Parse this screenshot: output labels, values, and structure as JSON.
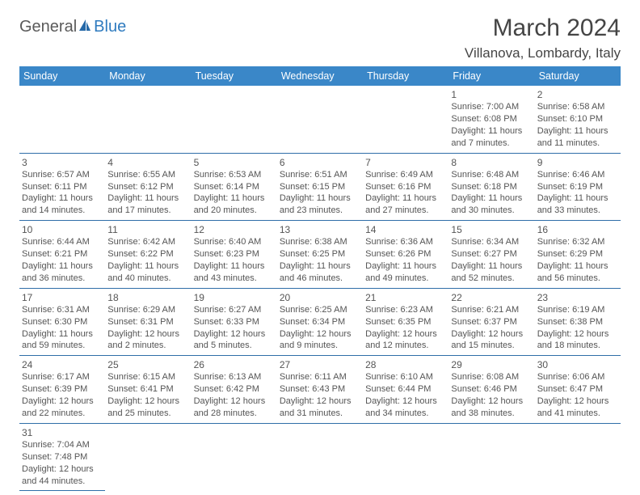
{
  "logo": {
    "text1": "General",
    "text2": "Blue"
  },
  "title": "March 2024",
  "location": "Villanova, Lombardy, Italy",
  "colors": {
    "header_bg": "#3a87c8",
    "header_text": "#ffffff",
    "border": "#2f6ea8",
    "text": "#555555",
    "title": "#454545"
  },
  "weekdays": [
    "Sunday",
    "Monday",
    "Tuesday",
    "Wednesday",
    "Thursday",
    "Friday",
    "Saturday"
  ],
  "weeks": [
    [
      null,
      null,
      null,
      null,
      null,
      {
        "n": "1",
        "r": "Sunrise: 7:00 AM",
        "s": "Sunset: 6:08 PM",
        "d1": "Daylight: 11 hours",
        "d2": "and 7 minutes."
      },
      {
        "n": "2",
        "r": "Sunrise: 6:58 AM",
        "s": "Sunset: 6:10 PM",
        "d1": "Daylight: 11 hours",
        "d2": "and 11 minutes."
      }
    ],
    [
      {
        "n": "3",
        "r": "Sunrise: 6:57 AM",
        "s": "Sunset: 6:11 PM",
        "d1": "Daylight: 11 hours",
        "d2": "and 14 minutes."
      },
      {
        "n": "4",
        "r": "Sunrise: 6:55 AM",
        "s": "Sunset: 6:12 PM",
        "d1": "Daylight: 11 hours",
        "d2": "and 17 minutes."
      },
      {
        "n": "5",
        "r": "Sunrise: 6:53 AM",
        "s": "Sunset: 6:14 PM",
        "d1": "Daylight: 11 hours",
        "d2": "and 20 minutes."
      },
      {
        "n": "6",
        "r": "Sunrise: 6:51 AM",
        "s": "Sunset: 6:15 PM",
        "d1": "Daylight: 11 hours",
        "d2": "and 23 minutes."
      },
      {
        "n": "7",
        "r": "Sunrise: 6:49 AM",
        "s": "Sunset: 6:16 PM",
        "d1": "Daylight: 11 hours",
        "d2": "and 27 minutes."
      },
      {
        "n": "8",
        "r": "Sunrise: 6:48 AM",
        "s": "Sunset: 6:18 PM",
        "d1": "Daylight: 11 hours",
        "d2": "and 30 minutes."
      },
      {
        "n": "9",
        "r": "Sunrise: 6:46 AM",
        "s": "Sunset: 6:19 PM",
        "d1": "Daylight: 11 hours",
        "d2": "and 33 minutes."
      }
    ],
    [
      {
        "n": "10",
        "r": "Sunrise: 6:44 AM",
        "s": "Sunset: 6:21 PM",
        "d1": "Daylight: 11 hours",
        "d2": "and 36 minutes."
      },
      {
        "n": "11",
        "r": "Sunrise: 6:42 AM",
        "s": "Sunset: 6:22 PM",
        "d1": "Daylight: 11 hours",
        "d2": "and 40 minutes."
      },
      {
        "n": "12",
        "r": "Sunrise: 6:40 AM",
        "s": "Sunset: 6:23 PM",
        "d1": "Daylight: 11 hours",
        "d2": "and 43 minutes."
      },
      {
        "n": "13",
        "r": "Sunrise: 6:38 AM",
        "s": "Sunset: 6:25 PM",
        "d1": "Daylight: 11 hours",
        "d2": "and 46 minutes."
      },
      {
        "n": "14",
        "r": "Sunrise: 6:36 AM",
        "s": "Sunset: 6:26 PM",
        "d1": "Daylight: 11 hours",
        "d2": "and 49 minutes."
      },
      {
        "n": "15",
        "r": "Sunrise: 6:34 AM",
        "s": "Sunset: 6:27 PM",
        "d1": "Daylight: 11 hours",
        "d2": "and 52 minutes."
      },
      {
        "n": "16",
        "r": "Sunrise: 6:32 AM",
        "s": "Sunset: 6:29 PM",
        "d1": "Daylight: 11 hours",
        "d2": "and 56 minutes."
      }
    ],
    [
      {
        "n": "17",
        "r": "Sunrise: 6:31 AM",
        "s": "Sunset: 6:30 PM",
        "d1": "Daylight: 11 hours",
        "d2": "and 59 minutes."
      },
      {
        "n": "18",
        "r": "Sunrise: 6:29 AM",
        "s": "Sunset: 6:31 PM",
        "d1": "Daylight: 12 hours",
        "d2": "and 2 minutes."
      },
      {
        "n": "19",
        "r": "Sunrise: 6:27 AM",
        "s": "Sunset: 6:33 PM",
        "d1": "Daylight: 12 hours",
        "d2": "and 5 minutes."
      },
      {
        "n": "20",
        "r": "Sunrise: 6:25 AM",
        "s": "Sunset: 6:34 PM",
        "d1": "Daylight: 12 hours",
        "d2": "and 9 minutes."
      },
      {
        "n": "21",
        "r": "Sunrise: 6:23 AM",
        "s": "Sunset: 6:35 PM",
        "d1": "Daylight: 12 hours",
        "d2": "and 12 minutes."
      },
      {
        "n": "22",
        "r": "Sunrise: 6:21 AM",
        "s": "Sunset: 6:37 PM",
        "d1": "Daylight: 12 hours",
        "d2": "and 15 minutes."
      },
      {
        "n": "23",
        "r": "Sunrise: 6:19 AM",
        "s": "Sunset: 6:38 PM",
        "d1": "Daylight: 12 hours",
        "d2": "and 18 minutes."
      }
    ],
    [
      {
        "n": "24",
        "r": "Sunrise: 6:17 AM",
        "s": "Sunset: 6:39 PM",
        "d1": "Daylight: 12 hours",
        "d2": "and 22 minutes."
      },
      {
        "n": "25",
        "r": "Sunrise: 6:15 AM",
        "s": "Sunset: 6:41 PM",
        "d1": "Daylight: 12 hours",
        "d2": "and 25 minutes."
      },
      {
        "n": "26",
        "r": "Sunrise: 6:13 AM",
        "s": "Sunset: 6:42 PM",
        "d1": "Daylight: 12 hours",
        "d2": "and 28 minutes."
      },
      {
        "n": "27",
        "r": "Sunrise: 6:11 AM",
        "s": "Sunset: 6:43 PM",
        "d1": "Daylight: 12 hours",
        "d2": "and 31 minutes."
      },
      {
        "n": "28",
        "r": "Sunrise: 6:10 AM",
        "s": "Sunset: 6:44 PM",
        "d1": "Daylight: 12 hours",
        "d2": "and 34 minutes."
      },
      {
        "n": "29",
        "r": "Sunrise: 6:08 AM",
        "s": "Sunset: 6:46 PM",
        "d1": "Daylight: 12 hours",
        "d2": "and 38 minutes."
      },
      {
        "n": "30",
        "r": "Sunrise: 6:06 AM",
        "s": "Sunset: 6:47 PM",
        "d1": "Daylight: 12 hours",
        "d2": "and 41 minutes."
      }
    ],
    [
      {
        "n": "31",
        "r": "Sunrise: 7:04 AM",
        "s": "Sunset: 7:48 PM",
        "d1": "Daylight: 12 hours",
        "d2": "and 44 minutes."
      },
      null,
      null,
      null,
      null,
      null,
      null
    ]
  ]
}
